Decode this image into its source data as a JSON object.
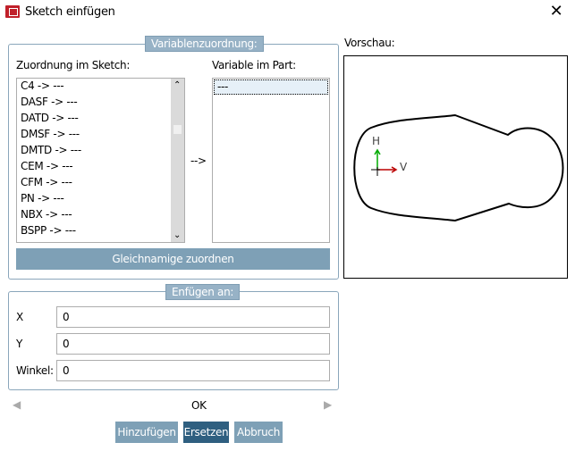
{
  "window": {
    "title": "Sketch einfügen",
    "close_label": "✕"
  },
  "mapping": {
    "legend": "Variablenzuordnung:",
    "sketch_label": "Zuordnung im Sketch:",
    "part_label": "Variable im Part:",
    "sketch_items": [
      "C4 -> ---",
      "DASF -> ---",
      "DATD -> ---",
      "DMSF -> ---",
      "DMTD -> ---",
      "CEM -> ---",
      "CFM -> ---",
      "PN -> ---",
      "NBX -> ---",
      "BSPP -> ---"
    ],
    "part_items": [
      "---"
    ],
    "arrow_label": "-->",
    "match_button": "Gleichnamige zuordnen"
  },
  "preview": {
    "label": "Vorschau:",
    "axis_h": "H",
    "axis_v": "V"
  },
  "insert": {
    "legend": "Enfügen an:",
    "fields": [
      {
        "label": "X",
        "value": "0"
      },
      {
        "label": "Y",
        "value": "0"
      },
      {
        "label": "Winkel:",
        "value": "0"
      }
    ]
  },
  "status": "OK",
  "buttons": {
    "add": "Hinzufügen",
    "replace": "Ersetzen",
    "cancel": "Abbruch"
  },
  "colors": {
    "accent": "#7ea0b6",
    "primary": "#2f5f80",
    "icon": "#c0202a"
  }
}
